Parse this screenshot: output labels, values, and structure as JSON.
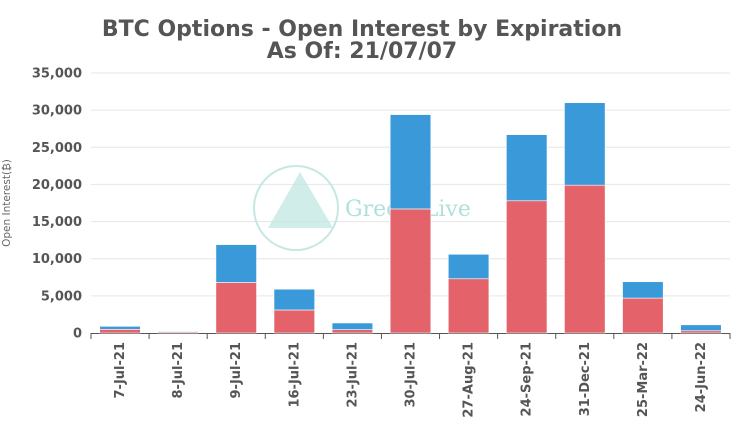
{
  "chart_data": {
    "type": "bar",
    "stacked": true,
    "title": "BTC Options - Open Interest by Expiration",
    "subtitle": "As Of: 21/07/07",
    "ylabel": "Open Interest(₿)",
    "xlabel": "",
    "ylim": [
      0,
      35000
    ],
    "yticks": [
      0,
      5000,
      10000,
      15000,
      20000,
      25000,
      30000,
      35000
    ],
    "ytick_labels": [
      "0",
      "5,000",
      "10,000",
      "15,000",
      "20,000",
      "25,000",
      "30,000",
      "35,000"
    ],
    "grid": true,
    "categories": [
      "7-Jul-21",
      "8-Jul-21",
      "9-Jul-21",
      "16-Jul-21",
      "23-Jul-21",
      "30-Jul-21",
      "27-Aug-21",
      "24-Sep-21",
      "31-Dec-21",
      "25-Mar-22",
      "24-Jun-22"
    ],
    "series": [
      {
        "color": "#e4636a",
        "values": [
          500,
          150,
          6800,
          3100,
          450,
          16700,
          7300,
          17800,
          19900,
          4700,
          300
        ]
      },
      {
        "color": "#3a9ad9",
        "values": [
          400,
          100,
          5100,
          2800,
          900,
          12700,
          3300,
          8900,
          11100,
          2200,
          800
        ]
      }
    ]
  },
  "watermark": {
    "text": "GreeksLive",
    "color": "#a8ddd6"
  }
}
